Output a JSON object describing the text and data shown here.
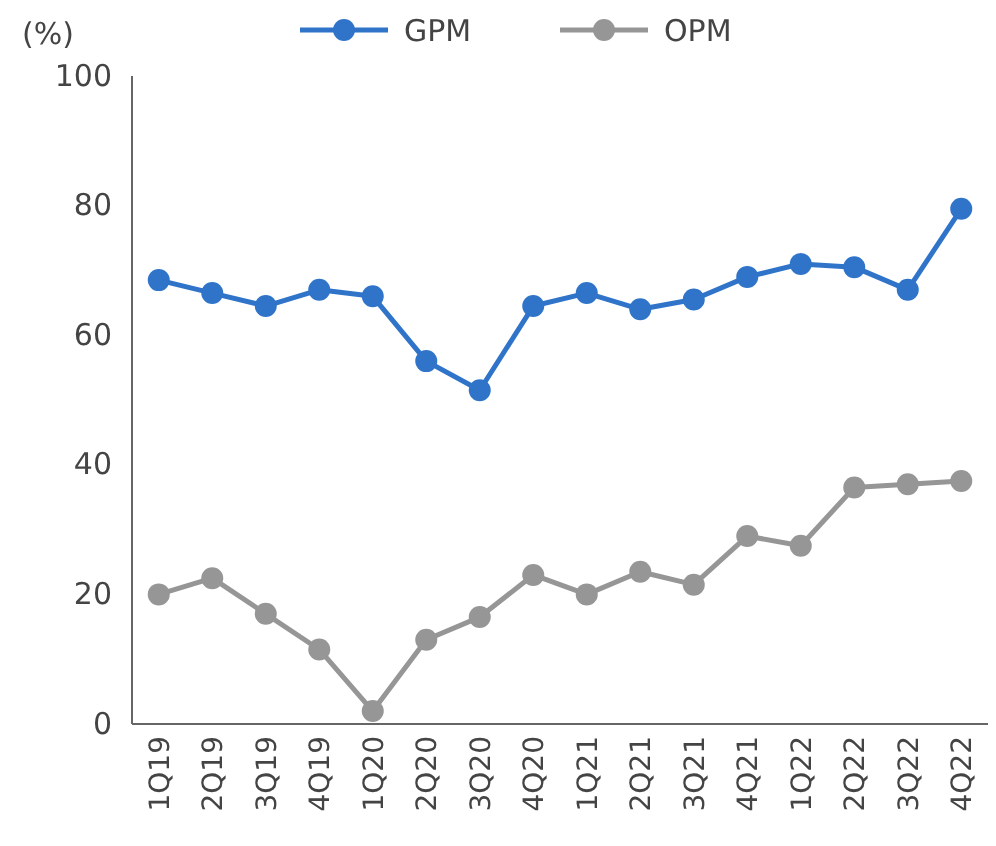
{
  "chart_data": {
    "type": "line",
    "ylabel": "(%)",
    "categories": [
      "1Q19",
      "2Q19",
      "3Q19",
      "4Q19",
      "1Q20",
      "2Q20",
      "3Q20",
      "4Q20",
      "1Q21",
      "2Q21",
      "3Q21",
      "4Q21",
      "1Q22",
      "2Q22",
      "3Q22",
      "4Q22"
    ],
    "series": [
      {
        "name": "GPM",
        "color": "#2f74c9",
        "values": [
          68.5,
          66.5,
          64.5,
          67,
          66,
          56,
          51.5,
          64.5,
          66.5,
          64,
          65.5,
          69,
          71,
          70.5,
          67,
          79.5
        ]
      },
      {
        "name": "OPM",
        "color": "#969696",
        "values": [
          20,
          22.5,
          17,
          11.5,
          2,
          13,
          16.5,
          23,
          20,
          23.5,
          21.5,
          29,
          27.5,
          36.5,
          37,
          37.5
        ]
      }
    ],
    "ylim": [
      0,
      100
    ],
    "yticks": [
      0,
      20,
      40,
      60,
      80,
      100
    ],
    "legend": "top",
    "marker": "circle",
    "line_style": "solid"
  }
}
